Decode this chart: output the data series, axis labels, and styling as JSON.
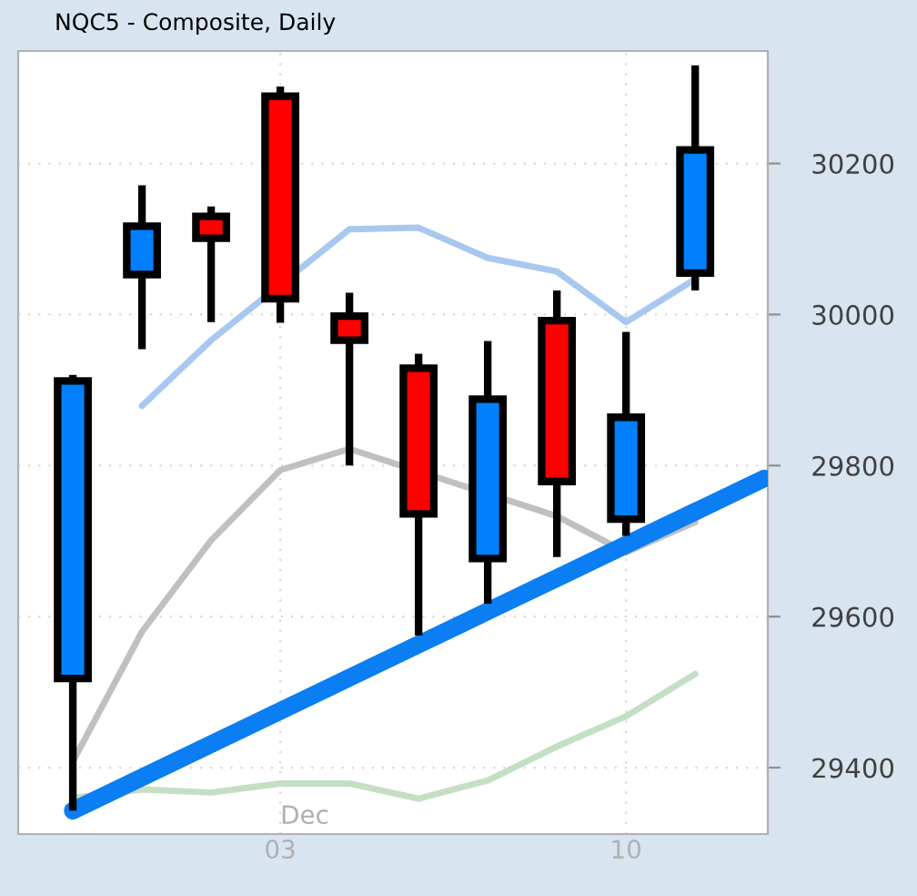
{
  "chart_data": {
    "type": "candlestick",
    "title": "NQC5 - Composite, Daily",
    "categories": [
      null,
      null,
      null,
      "03",
      null,
      null,
      null,
      null,
      "10",
      null,
      null
    ],
    "ohlc": [
      [
        29518,
        29920,
        29343,
        29912
      ],
      [
        30053,
        30171,
        29954,
        30117
      ],
      [
        30130,
        30143,
        29990,
        30101
      ],
      [
        30289,
        30302,
        29989,
        30021
      ],
      [
        29998,
        30029,
        29800,
        29966
      ],
      [
        29929,
        29948,
        29575,
        29736
      ],
      [
        29677,
        29965,
        29617,
        29888
      ],
      [
        29992,
        30032,
        29679,
        29779
      ],
      [
        29729,
        29977,
        29707,
        29864
      ],
      [
        30055,
        30330,
        30032,
        30218
      ],
      null
    ],
    "colors": [
      "#0080ff",
      "#0080ff",
      "#ff0000",
      "#ff0000",
      "#ff0000",
      "#ff0000",
      "#0080ff",
      "#ff0000",
      "#0080ff",
      "#0080ff",
      null
    ],
    "series": [
      {
        "type": "line",
        "color": "#a8c8f0",
        "values": [
          null,
          29879,
          29966,
          null,
          30113,
          30115,
          30075,
          30057,
          29990,
          30047,
          null
        ]
      },
      {
        "type": "line",
        "color": "#c0c0c0",
        "values": [
          29408,
          29580,
          29701,
          29794,
          29822,
          null,
          null,
          29733,
          29685,
          29725,
          null
        ]
      },
      {
        "type": "line",
        "color": "#c4dfc4",
        "values": [
          29360,
          29371,
          29367,
          29379,
          29379,
          29359,
          29383,
          29428,
          29468,
          29524,
          null
        ]
      },
      {
        "type": "line",
        "color": "#0a7ef2",
        "values": [
          29343,
          29387,
          29431,
          29475,
          29519,
          29563,
          29607,
          29651,
          29695,
          29739,
          29783
        ]
      }
    ],
    "ylim": [
      29312,
      30349
    ],
    "yticks": [
      29400,
      29600,
      29800,
      30000,
      30200
    ],
    "grid": true,
    "annotations": [
      "Dec"
    ]
  }
}
